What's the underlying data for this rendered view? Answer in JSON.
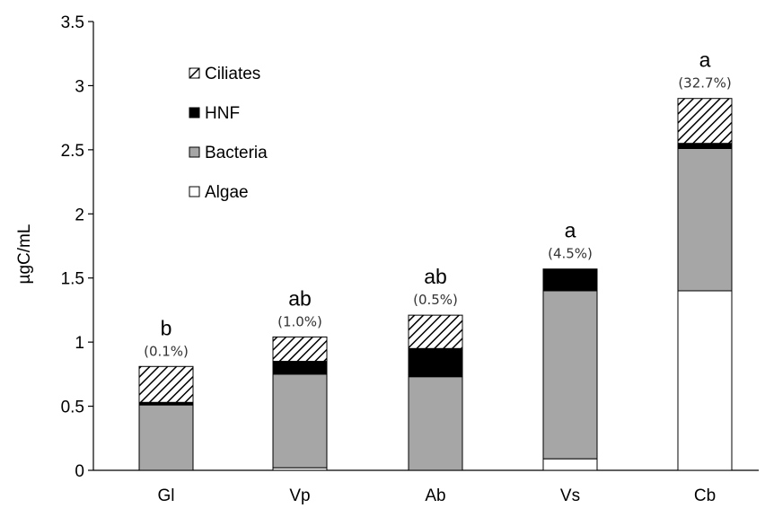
{
  "chart_data": {
    "type": "bar",
    "stacked": true,
    "categories": [
      "Gl",
      "Vp",
      "Ab",
      "Vs",
      "Cb"
    ],
    "ylabel": "µgC/mL",
    "xlabel": "",
    "ylim": [
      0,
      3.5
    ],
    "yticks": [
      "0",
      "0.5",
      "1",
      "1.5",
      "2",
      "2.5",
      "3",
      "3.5"
    ],
    "ytick_values": [
      0,
      0.5,
      1,
      1.5,
      2,
      2.5,
      3,
      3.5
    ],
    "grid": false,
    "legend_position": "top-left",
    "legend": [
      "Ciliates",
      "HNF",
      "Bacteria",
      "Algae"
    ],
    "series": [
      {
        "name": "Algae",
        "values": [
          0.0,
          0.02,
          0.0,
          0.09,
          1.4
        ],
        "fill": "#ffffff"
      },
      {
        "name": "Bacteria",
        "values": [
          0.51,
          0.73,
          0.73,
          1.31,
          1.11
        ],
        "fill": "#a6a6a6"
      },
      {
        "name": "HNF",
        "values": [
          0.02,
          0.1,
          0.22,
          0.17,
          0.04
        ],
        "fill": "#000000"
      },
      {
        "name": "Ciliates",
        "values": [
          0.28,
          0.19,
          0.26,
          0.0,
          0.35
        ],
        "fill": "hatch"
      }
    ],
    "annotations": [
      {
        "letter": "b",
        "percent": "(0.1%)"
      },
      {
        "letter": "ab",
        "percent": "(1.0%)"
      },
      {
        "letter": "ab",
        "percent": "(0.5%)"
      },
      {
        "letter": "a",
        "percent": "(4.5%)"
      },
      {
        "letter": "a",
        "percent": "(32.7%)"
      }
    ]
  }
}
